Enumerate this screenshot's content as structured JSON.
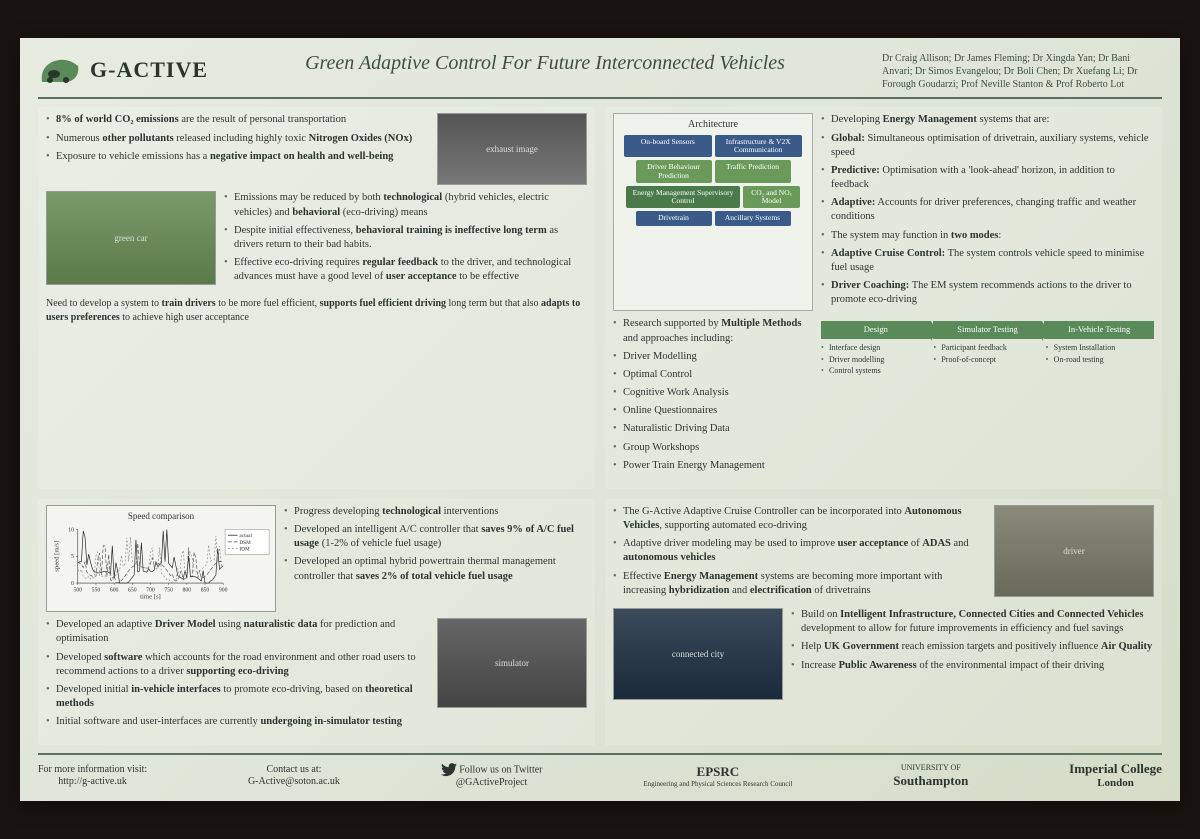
{
  "header": {
    "logo_text": "G-ACTIVE",
    "title": "Green Adaptive Control For Future Interconnected Vehicles",
    "authors": "Dr Craig Allison; Dr James Fleming; Dr Xingda Yan; Dr Bani Anvari; Dr Simos Evangelou; Dr Boli Chen; Dr Xuefang Li; Dr Forough Goudarzi; Prof Neville Stanton & Prof Roberto Lot"
  },
  "colors": {
    "poster_bg": "#e2e8da",
    "accent": "#5a7060",
    "text": "#2a3530",
    "arch_blue": "#3a5a8a",
    "arch_green": "#6a9a5a",
    "arch_dgreen": "#4a7a4a",
    "pipe": "#5a8a5a"
  },
  "q1": {
    "bullets_a": [
      "<b>8% of world CO₂ emissions</b> are the result of personal transportation",
      "Numerous <b>other pollutants</b> released including highly toxic <b>Nitrogen Oxides (NOx)</b>",
      "Exposure to vehicle emissions has a <b>negative impact on health and well-being</b>"
    ],
    "bullets_b": [
      "Emissions may be reduced by both <b>technological</b> (hybrid vehicles, electric vehicles) and <b>behavioral</b> (eco-driving) means",
      "Despite initial effectiveness, <b>behavioral training is ineffective long term</b> as drivers return to their bad habits.",
      "Effective eco-driving requires <b>regular feedback</b> to the driver, and technological advances must have a good level of <b>user acceptance</b> to be effective"
    ],
    "summary": "Need to develop a system to <b>train drivers</b> to be more fuel efficient, <b>supports fuel efficient driving</b> long term but that also <b>adapts to users preferences</b> to achieve high user acceptance"
  },
  "q2": {
    "arch": {
      "title": "Architecture",
      "boxes": {
        "sensors": "On-board Sensors",
        "v2x": "Infrastructure & V2X Communication",
        "behaviour": "Driver Behaviour Prediction",
        "traffic": "Traffic Prediction",
        "ems": "Energy Management Supervisory Control",
        "co2": "CO₂ and NOₓ Model",
        "drivetrain": "Drivetrain",
        "ancillary": "Ancillary Systems"
      }
    },
    "methods_intro": "Research supported by <b>Multiple Methods</b> and approaches including:",
    "methods": [
      "Driver Modelling",
      "Optimal Control",
      "Cognitive Work Analysis",
      "Online Questionnaires",
      "Naturalistic Driving Data",
      "Group Workshops",
      "Power Train Energy Management"
    ],
    "em_intro": "Developing <b>Energy Management</b> systems that are:",
    "em_items": [
      "<b>Global:</b> Simultaneous optimisation of drivetrain, auxiliary systems, vehicle speed",
      "<b>Predictive:</b> Optimisation with a 'look-ahead' horizon, in addition to feedback",
      "<b>Adaptive:</b> Accounts for driver preferences, changing traffic and weather conditions"
    ],
    "modes_intro": "The system may function in <b>two modes</b>:",
    "modes": [
      "<b>Adaptive Cruise Control:</b> The system controls vehicle speed to minimise fuel usage",
      "<b>Driver Coaching:</b> The EM system recommends actions to the driver to promote eco-driving"
    ],
    "pipeline": {
      "stages": [
        "Design",
        "Simulator Testing",
        "In-Vehicle Testing"
      ],
      "items": [
        [
          "Interface design",
          "Driver modelling",
          "Control systems"
        ],
        [
          "Participant feedback",
          "Proof-of-concept"
        ],
        [
          "System Installation",
          "On-road testing"
        ]
      ]
    }
  },
  "q3": {
    "chart": {
      "title": "Speed comparison",
      "xlabel": "time [s]",
      "ylabel": "speed [m/s]",
      "xlim": [
        500,
        900
      ],
      "xtick_step": 50,
      "ylim": [
        0,
        10
      ],
      "ytick_step": 5,
      "series": [
        {
          "name": "actual",
          "color": "#222",
          "dash": "0"
        },
        {
          "name": "DSM",
          "color": "#555",
          "dash": "4,2"
        },
        {
          "name": "IDM",
          "color": "#888",
          "dash": "2,2"
        }
      ],
      "label_fontsize": 8
    },
    "bullets_a": [
      "Developed an adaptive <b>Driver Model</b> using <b>naturalistic data</b> for prediction and optimisation",
      "Developed <b>software</b> which accounts for the road environment and other road users to recommend actions to a driver <b>supporting eco-driving</b>",
      "Developed initial <b>in-vehicle interfaces</b> to promote eco-driving, based on <b>theoretical methods</b>",
      "Initial software and user-interfaces are currently <b>undergoing in-simulator testing</b>"
    ],
    "bullets_b": [
      "Progress developing <b>technological</b> interventions",
      "Developed an intelligent A/C controller that <b>saves 9% of A/C fuel usage</b> (1-2% of vehicle fuel usage)",
      "Developed an optimal hybrid powertrain thermal management controller that <b>saves 2% of total vehicle fuel usage</b>"
    ]
  },
  "q4": {
    "bullets_a": [
      "The G-Active Adaptive Cruise Controller can be incorporated into <b>Autonomous Vehicles</b>, supporting automated eco-driving",
      "Adaptive driver modeling may be used to improve <b>user acceptance</b> of <b>ADAS</b> and <b>autonomous vehicles</b>",
      "Effective <b>Energy Management</b> systems are becoming more important with increasing <b>hybridization</b> and <b>electrification</b> of drivetrains"
    ],
    "bullets_b": [
      "Build on <b>Intelligent Infrastructure, Connected Cities and Connected Vehicles</b> development to allow for future improvements in efficiency and fuel savings",
      "Help <b>UK Government</b> reach emission targets and positively influence <b>Air Quality</b>",
      "Increase <b>Public Awareness</b> of the environmental impact of their driving"
    ]
  },
  "footer": {
    "info_label": "For more information visit:",
    "info_url": "http://g-active.uk",
    "contact_label": "Contact us at:",
    "contact_email": "G-Active@soton.ac.uk",
    "twitter_label": "Follow us on Twitter",
    "twitter_handle": "@GActiveProject",
    "sponsors": {
      "epsrc": "EPSRC",
      "epsrc_sub": "Engineering and Physical Sciences Research Council",
      "soton_pre": "UNIVERSITY OF",
      "soton": "Southampton",
      "imperial": "Imperial College",
      "imperial_sub": "London"
    }
  }
}
